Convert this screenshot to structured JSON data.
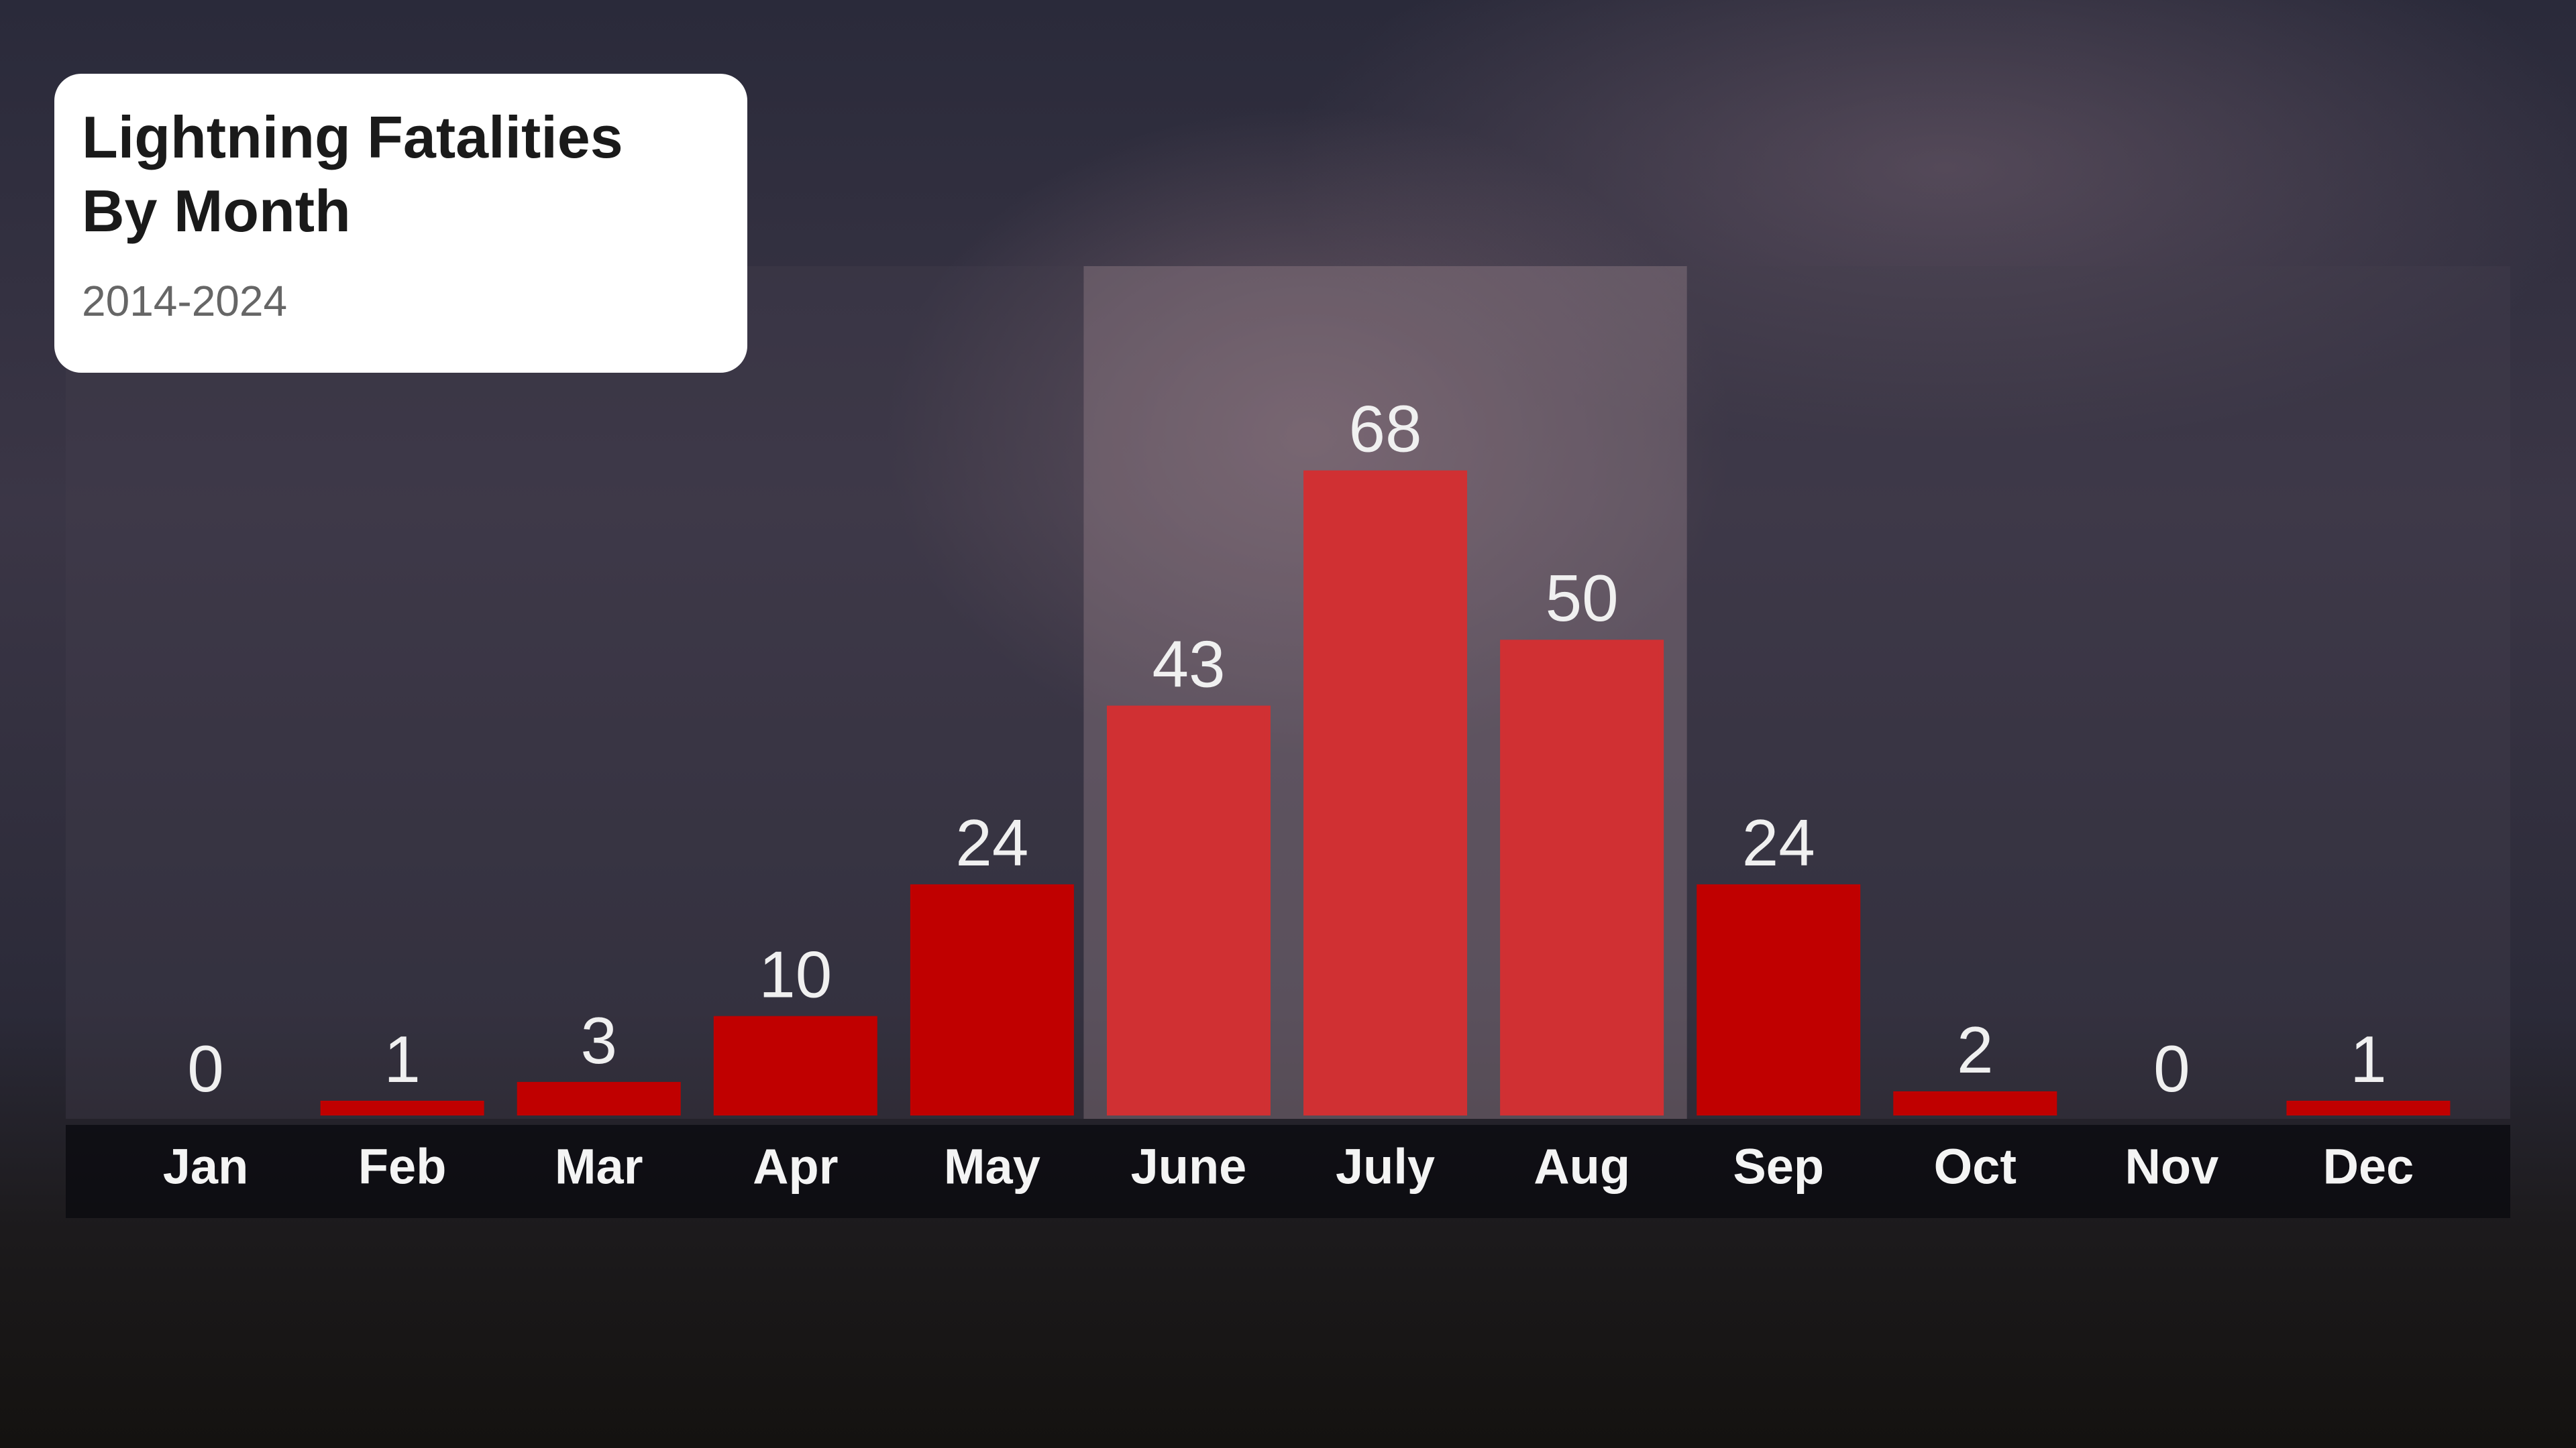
{
  "chart_data": {
    "type": "bar",
    "title": "Lightning Fatalities By Month",
    "subtitle": "2014-2024",
    "categories": [
      "Jan",
      "Feb",
      "Mar",
      "Apr",
      "May",
      "June",
      "July",
      "Aug",
      "Sep",
      "Oct",
      "Nov",
      "Dec"
    ],
    "values": [
      0,
      1,
      3,
      10,
      24,
      43,
      68,
      50,
      24,
      2,
      0,
      1
    ],
    "colors": [
      "#c00000",
      "#c00000",
      "#c00000",
      "#c00000",
      "#c00000",
      "#d03033",
      "#d03033",
      "#d03033",
      "#c00000",
      "#c00000",
      "#c00000",
      "#c00000"
    ],
    "highlight_color": "#d03033",
    "ylim": [
      0,
      90
    ],
    "grid": false
  }
}
